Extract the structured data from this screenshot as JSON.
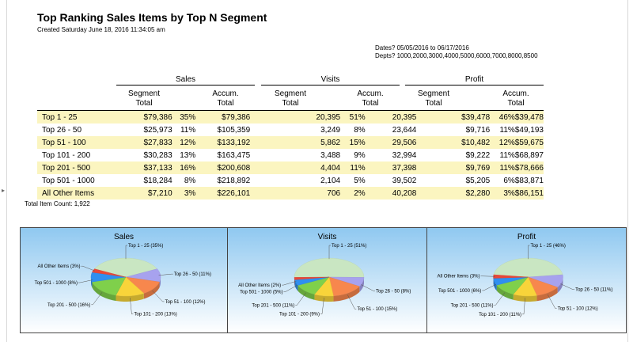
{
  "report": {
    "title": "Top Ranking Sales Items by Top N Segment",
    "created": "Created Saturday June 18, 2016 11:34:05 am",
    "dates": "Dates? 05/05/2016 to 06/17/2016",
    "depts": "Depts? 1000,2000,3000,4000,5000,6000,7000,8000,8500",
    "total_item_count": "Total Item Count: 1,922"
  },
  "groups": {
    "sales": "Sales",
    "visits": "Visits",
    "profit": "Profit"
  },
  "columns": {
    "sales_seg": [
      "Segment",
      "Total"
    ],
    "sales_acc": [
      "Accum.",
      "Total"
    ],
    "visits_seg": [
      "Segment",
      "Total"
    ],
    "visits_acc": [
      "Accum.",
      "Total"
    ],
    "profit_seg": [
      "Segment",
      "Total"
    ],
    "profit_acc": [
      "Accum.",
      "Total"
    ]
  },
  "rows": [
    [
      "Top 1 - 25",
      "$79,386",
      "35%",
      "$79,386",
      "20,395",
      "51%",
      "20,395",
      "$39,478",
      "46%",
      "$39,478"
    ],
    [
      "Top 26 - 50",
      "$25,973",
      "11%",
      "$105,359",
      "3,249",
      "8%",
      "23,644",
      "$9,716",
      "11%",
      "$49,193"
    ],
    [
      "Top 51 - 100",
      "$27,833",
      "12%",
      "$133,192",
      "5,862",
      "15%",
      "29,506",
      "$10,482",
      "12%",
      "$59,675"
    ],
    [
      "Top 101 - 200",
      "$30,283",
      "13%",
      "$163,475",
      "3,488",
      "9%",
      "32,994",
      "$9,222",
      "11%",
      "$68,897"
    ],
    [
      "Top 201 - 500",
      "$37,133",
      "16%",
      "$200,608",
      "4,404",
      "11%",
      "37,398",
      "$9,769",
      "11%",
      "$78,666"
    ],
    [
      "Top 501 - 1000",
      "$18,284",
      "8%",
      "$218,892",
      "2,104",
      "5%",
      "39,502",
      "$5,205",
      "6%",
      "$83,871"
    ],
    [
      "All Other Items",
      "$7,210",
      "3%",
      "$226,101",
      "706",
      "2%",
      "40,208",
      "$2,280",
      "3%",
      "$86,151"
    ]
  ],
  "slice_colors": {
    "top_1_25": "#c9e6c2",
    "top_26_50": "#a7a2ee",
    "top_51_100": "#f7874d",
    "top_101_200": "#f8d43a",
    "top_201_500": "#7fd04b",
    "top_501_1000": "#2f8ff0",
    "all_other": "#e84838"
  },
  "chart_data": [
    {
      "type": "pie",
      "title": "Sales",
      "categories": [
        "Top 1 - 25",
        "Top 26 - 50",
        "Top 51 - 100",
        "Top 101 - 200",
        "Top 201 - 500",
        "Top 501 - 1000",
        "All Other Items"
      ],
      "values": [
        35,
        11,
        12,
        13,
        16,
        8,
        3
      ],
      "labels": [
        "Top 1 - 25 (35%)",
        "Top 26 - 50 (11%)",
        "Top 51 - 100 (12%)",
        "Top 101 - 200 (13%)",
        "Top 201 - 500 (16%)",
        "Top 501 - 1000 (8%)",
        "All Other Items (3%)"
      ]
    },
    {
      "type": "pie",
      "title": "Visits",
      "categories": [
        "Top 1 - 25",
        "Top 26 - 50",
        "Top 51 - 100",
        "Top 101 - 200",
        "Top 201 - 500",
        "Top 501 - 1000",
        "All Other Items"
      ],
      "values": [
        51,
        8,
        15,
        9,
        11,
        5,
        2
      ],
      "labels": [
        "Top 1 - 25 (51%)",
        "Top 26 - 50 (8%)",
        "Top 51 - 100 (15%)",
        "Top 101 - 200 (9%)",
        "Top 201 - 500 (11%)",
        "Top 501 - 1000 (5%)",
        "All Other Items (2%)"
      ]
    },
    {
      "type": "pie",
      "title": "Profit",
      "categories": [
        "Top 1 - 25",
        "Top 26 - 50",
        "Top 51 - 100",
        "Top 101 - 200",
        "Top 201 - 500",
        "Top 501 - 1000",
        "All Other Items"
      ],
      "values": [
        46,
        11,
        12,
        11,
        11,
        6,
        3
      ],
      "labels": [
        "Top 1 - 25 (46%)",
        "Top 26 - 50 (11%)",
        "Top 51 - 100 (12%)",
        "Top 101 - 200 (11%)",
        "Top 201 - 500 (11%)",
        "Top 501 - 1000 (6%)",
        "All Other Items (3%)"
      ]
    }
  ]
}
